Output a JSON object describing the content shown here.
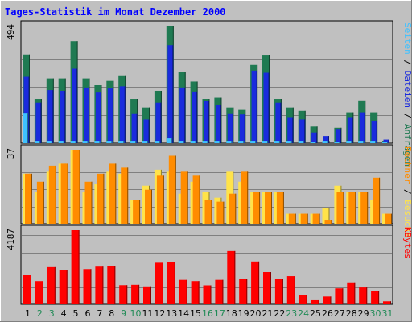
{
  "chart_data": {
    "type": "bar",
    "title": "Tages-Statistik im Monat Dezember 2000",
    "categories": [
      "1",
      "2",
      "3",
      "4",
      "5",
      "6",
      "7",
      "8",
      "9",
      "10",
      "11",
      "12",
      "13",
      "14",
      "15",
      "16",
      "17",
      "18",
      "19",
      "20",
      "21",
      "22",
      "23",
      "24",
      "25",
      "26",
      "27",
      "28",
      "29",
      "30",
      "31"
    ],
    "weekend_days": [
      "2",
      "3",
      "9",
      "10",
      "16",
      "17",
      "23",
      "24",
      "30",
      "31"
    ],
    "panels": [
      {
        "id": "top",
        "max_label": "494",
        "ylim": [
          0,
          494
        ],
        "grid": true,
        "right_label_parts": [
          {
            "text": "Seiten",
            "color": "#3fc1ff"
          },
          {
            "text": " / ",
            "color": "#000000"
          },
          {
            "text": "Dateien",
            "color": "#1a2bdd"
          },
          {
            "text": " / ",
            "color": "#000000"
          },
          {
            "text": "Anfragen",
            "color": "#1f7a52"
          }
        ],
        "series": [
          {
            "name": "Anfragen",
            "color": "#1f7a52",
            "values": [
              373,
              186,
              272,
              272,
              429,
              272,
              246,
              265,
              285,
              186,
              150,
              220,
              494,
              300,
              259,
              186,
              191,
              150,
              140,
              329,
              372,
              186,
              150,
              136,
              70,
              10,
              65,
              130,
              180,
              130,
              10
            ]
          },
          {
            "name": "Dateien",
            "color": "#1a2bdd",
            "values": [
              279,
              170,
              223,
              220,
              313,
              234,
              216,
              233,
              239,
              126,
              100,
              170,
              412,
              234,
              217,
              176,
              160,
              126,
              121,
              305,
              296,
              170,
              110,
              100,
              45,
              30,
              60,
              110,
              130,
              95,
              15
            ]
          },
          {
            "name": "Seiten",
            "color": "#3fc1ff",
            "values": [
              128,
              10,
              10,
              10,
              10,
              10,
              10,
              10,
              10,
              10,
              10,
              10,
              20,
              10,
              10,
              10,
              10,
              10,
              10,
              10,
              10,
              10,
              10,
              10,
              5,
              10,
              5,
              10,
              10,
              10,
              5
            ]
          }
        ]
      },
      {
        "id": "middle",
        "max_label": "37",
        "ylim": [
          0,
          37
        ],
        "grid": true,
        "right_label_parts": [
          {
            "text": "Rechner",
            "color": "#ff8c00"
          },
          {
            "text": " / ",
            "color": "#000000"
          },
          {
            "text": "Besuche",
            "color": "#ffe34a"
          }
        ],
        "series": [
          {
            "name": "Besuche",
            "color": "#ffe34a",
            "values": [
              25,
              16,
              26,
              30,
              37,
              16,
              20,
              26,
              25,
              12,
              19,
              27,
              26,
              15,
              21,
              16,
              13,
              26,
              21,
              16,
              16,
              16,
              5,
              5,
              5,
              8,
              19,
              16,
              16,
              12,
              5
            ]
          },
          {
            "name": "Rechner",
            "color": "#ff8c00",
            "values": [
              25,
              21,
              29,
              30,
              37,
              21,
              25,
              30,
              28,
              12,
              17,
              24,
              34,
              26,
              24,
              12,
              11,
              15,
              26,
              16,
              16,
              16,
              5,
              5,
              5,
              2,
              16,
              16,
              16,
              23,
              5
            ]
          }
        ]
      },
      {
        "id": "bottom",
        "max_label": "4187",
        "ylim": [
          0,
          4187
        ],
        "grid": true,
        "right_label_parts": [
          {
            "text": "KBytes",
            "color": "#ff0000"
          }
        ],
        "series": [
          {
            "name": "KBytes",
            "color": "#ff0000",
            "values": [
              1650,
              1310,
              2100,
              1920,
              4187,
              1990,
              2130,
              2160,
              1080,
              1100,
              1010,
              2350,
              2390,
              1380,
              1310,
              1070,
              1380,
              3010,
              1440,
              2420,
              1820,
              1440,
              1590,
              520,
              230,
              440,
              900,
              1240,
              950,
              760,
              170
            ]
          }
        ]
      }
    ]
  }
}
